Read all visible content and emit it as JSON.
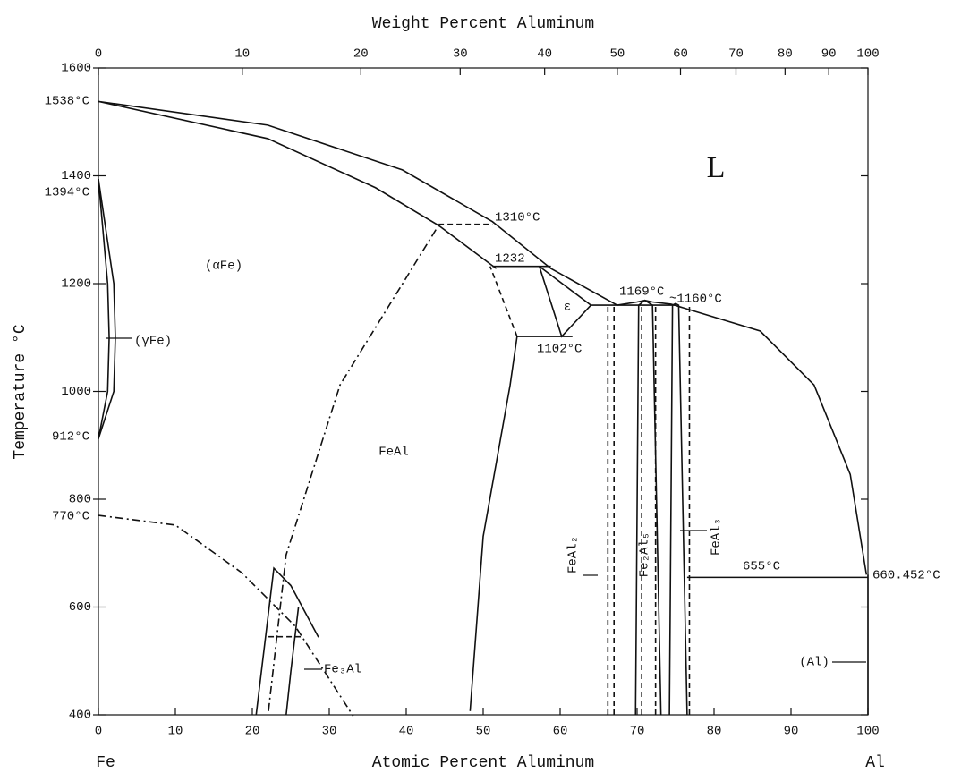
{
  "chart_data": {
    "type": "phase-diagram",
    "title": "Weight Percent Aluminum",
    "xlabel": "Atomic Percent Aluminum",
    "ylabel": "Temperature °C",
    "xlim": [
      0,
      100
    ],
    "xticks": [
      0,
      10,
      20,
      30,
      40,
      50,
      60,
      70,
      80,
      90,
      100
    ],
    "ylim": [
      400,
      1600
    ],
    "yticks": [
      400,
      600,
      800,
      1000,
      1200,
      1400,
      1600
    ],
    "x2ticks": [
      0,
      10,
      20,
      30,
      40,
      50,
      60,
      70,
      80,
      90,
      100
    ],
    "end_labels": [
      "Fe",
      "Al"
    ],
    "color": "#111111",
    "series": [
      {
        "style": "solid",
        "x": [
          0,
          22,
          39.5,
          51.2,
          58.8,
          67.4
        ],
        "values": [
          1538,
          1494,
          1411,
          1315,
          1228,
          1160
        ]
      },
      {
        "style": "solid",
        "x": [
          0,
          22,
          36,
          44.2,
          51.7
        ],
        "values": [
          1538,
          1469,
          1378,
          1308,
          1228
        ]
      },
      {
        "style": "solid",
        "x": [
          67.4,
          70,
          71,
          72,
          74.4,
          86,
          93,
          97.7,
          99.8
        ],
        "values": [
          1160,
          1166,
          1169,
          1166,
          1162,
          1112,
          1012,
          846,
          660
        ]
      },
      {
        "style": "solid",
        "x": [
          0,
          1.2,
          1.4,
          1.2,
          0
        ],
        "values": [
          1394,
          1200,
          1100,
          1000,
          912
        ]
      },
      {
        "style": "solid",
        "x": [
          0,
          2,
          2.2,
          2,
          0
        ],
        "values": [
          1394,
          1200,
          1100,
          1000,
          912
        ]
      },
      {
        "style": "dashdot",
        "x": [
          0,
          10,
          18.6,
          25.6,
          33.1
        ],
        "values": [
          770,
          752,
          664,
          564,
          398
        ]
      },
      {
        "style": "dashdot",
        "x": [
          22.1,
          24.4,
          31.4,
          44.2
        ],
        "values": [
          407,
          697,
          1012,
          1308
        ]
      },
      {
        "style": "dashed",
        "x": [
          44.2,
          51.2
        ],
        "values": [
          1310,
          1310
        ]
      },
      {
        "style": "solid",
        "x": [
          48.3,
          50,
          53.5,
          54.4
        ],
        "values": [
          407,
          731,
          1012,
          1102
        ]
      },
      {
        "style": "dashed",
        "x": [
          54.4,
          50.9
        ],
        "values": [
          1102,
          1232
        ]
      },
      {
        "style": "solid",
        "x": [
          51.2,
          58.8
        ],
        "values": [
          1232,
          1232
        ]
      },
      {
        "style": "solid",
        "x": [
          54.4,
          61.6
        ],
        "values": [
          1102,
          1102
        ]
      },
      {
        "style": "solid",
        "x": [
          57.3,
          60.2,
          64,
          57.3
        ],
        "values": [
          1232,
          1102,
          1160,
          1232
        ]
      },
      {
        "style": "solid",
        "x": [
          64,
          75
        ],
        "values": [
          1160,
          1160
        ]
      },
      {
        "style": "solid",
        "x": [
          69.8,
          70.2,
          71,
          72,
          73.1
        ],
        "values": [
          400,
          1160,
          1169,
          1160,
          400
        ]
      },
      {
        "style": "solid",
        "x": [
          74.2,
          74.6,
          75,
          75.4,
          76.5
        ],
        "values": [
          400,
          1160,
          1163,
          1160,
          400
        ]
      },
      {
        "style": "dashed",
        "x": [
          66.2,
          66.2
        ],
        "values": [
          400,
          1160
        ]
      },
      {
        "style": "dashed",
        "x": [
          67,
          67
        ],
        "values": [
          400,
          1160
        ]
      },
      {
        "style": "dashed",
        "x": [
          70.6,
          70.6
        ],
        "values": [
          400,
          1160
        ]
      },
      {
        "style": "dashed",
        "x": [
          72.4,
          72.4
        ],
        "values": [
          400,
          1160
        ]
      },
      {
        "style": "dashed",
        "x": [
          76.8,
          76.8
        ],
        "values": [
          400,
          1160
        ]
      },
      {
        "style": "solid",
        "x": [
          76.5,
          100
        ],
        "values": [
          655,
          655
        ]
      },
      {
        "style": "solid",
        "x": [
          100,
          100
        ],
        "values": [
          400,
          660
        ]
      },
      {
        "style": "solid",
        "x": [
          20.5,
          22.8,
          25,
          26.5,
          28.6
        ],
        "values": [
          400,
          672,
          640,
          600,
          544
        ]
      },
      {
        "style": "dashed",
        "x": [
          22.1,
          26.5
        ],
        "values": [
          545,
          545
        ]
      },
      {
        "style": "solid",
        "x": [
          24.4,
          25,
          26
        ],
        "values": [
          400,
          480,
          600
        ]
      }
    ],
    "annotations": [
      "1538°C",
      "1394°C",
      "912°C",
      "770°C",
      "(αFe)",
      "(γFe)",
      "1310°C",
      "1232",
      "ε",
      "1102°C",
      "1169°C",
      "~1160°C",
      "L",
      "FeAl",
      "FeAl₂",
      "Fe₂Al₅",
      "FeAl₃",
      "Fe₃Al",
      "655°C",
      "660.452°C",
      "(Al)"
    ]
  }
}
